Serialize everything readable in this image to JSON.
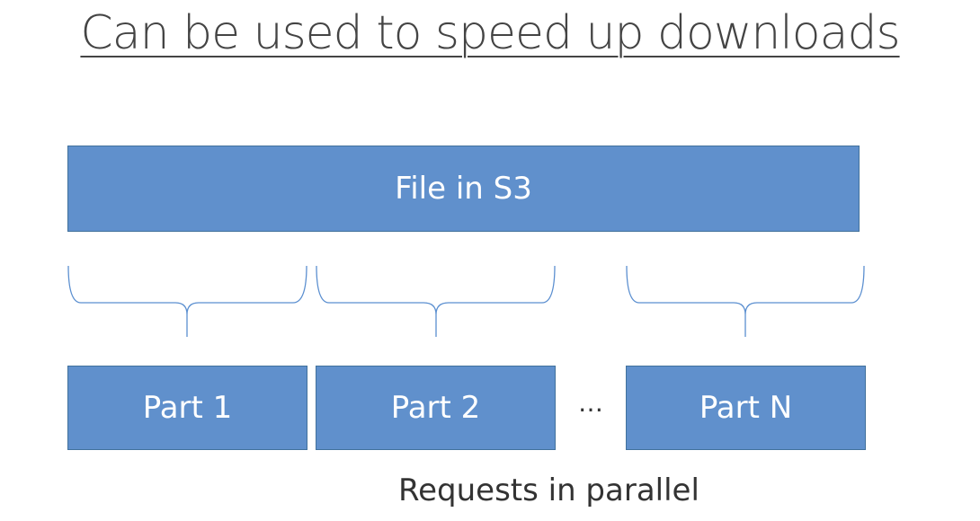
{
  "title": "Can be used to speed up downloads",
  "file": {
    "label": "File in S3"
  },
  "parts": [
    {
      "label": "Part 1"
    },
    {
      "label": "Part 2"
    },
    {
      "label": "Part N"
    }
  ],
  "ellipsis": "…",
  "caption": "Requests in parallel",
  "colors": {
    "box_fill": "#6090cc",
    "box_border": "#41719c",
    "brace": "#5b8fd0",
    "text_dark": "#333333"
  }
}
